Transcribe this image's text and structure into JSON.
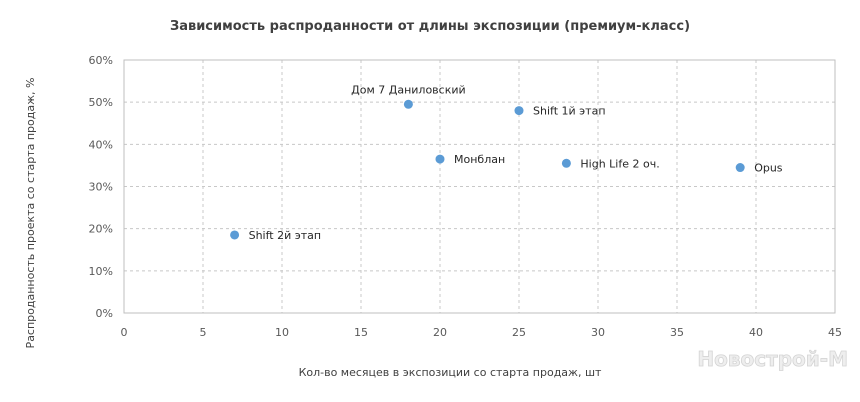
{
  "chart_data": {
    "type": "scatter",
    "title": "Зависимость  распроданности от длины экспозиции (премиум-класс)",
    "xlabel": "Кол-во месяцев в экспозиции со старта продаж, шт",
    "ylabel": "Распроданность проекта со старта продаж, %",
    "xlim": [
      0,
      45
    ],
    "ylim": [
      0,
      60
    ],
    "x_ticks": [
      0,
      5,
      10,
      15,
      20,
      25,
      30,
      35,
      40,
      45
    ],
    "y_ticks": [
      0,
      10,
      20,
      30,
      40,
      50,
      60
    ],
    "y_tick_suffix": "%",
    "grid": true,
    "legend": "none",
    "marker_color": "#5b9bd5",
    "points": [
      {
        "label": "Дом 7 Даниловский",
        "x": 18,
        "y": 49.5,
        "label_pos": "above"
      },
      {
        "label": "Shift 1й этап",
        "x": 25,
        "y": 48,
        "label_pos": "right"
      },
      {
        "label": "Монблан",
        "x": 20,
        "y": 36.5,
        "label_pos": "right"
      },
      {
        "label": "High Life 2 оч.",
        "x": 28,
        "y": 35.5,
        "label_pos": "right"
      },
      {
        "label": "Opus",
        "x": 39,
        "y": 34.5,
        "label_pos": "right"
      },
      {
        "label": "Shift 2й этап",
        "x": 7,
        "y": 18.5,
        "label_pos": "right"
      }
    ]
  },
  "watermark": "Новострой-М"
}
